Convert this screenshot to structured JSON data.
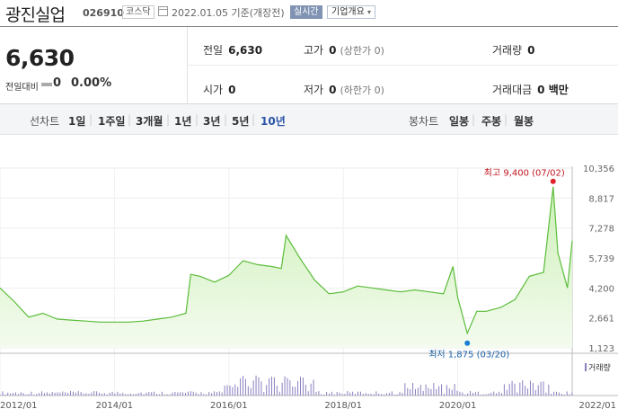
{
  "header": {
    "name": "광진실업",
    "code": "026910",
    "market": "코스닥",
    "date": "2022.01.05 기준(개장전)",
    "realtime": "실시간",
    "company_info": "기업개요"
  },
  "quote": {
    "price": "6,630",
    "change_label": "전일대비",
    "change": "0",
    "change_pct": "0.00%",
    "prev_close_label": "전일",
    "prev_close": "6,630",
    "high_label": "고가",
    "high": "0",
    "upper_limit": "(상한가 0)",
    "volume_label": "거래량",
    "volume": "0",
    "open_label": "시가",
    "open": "0",
    "low_label": "저가",
    "low": "0",
    "lower_limit": "(하한가 0)",
    "value_label": "거래대금",
    "value": "0 백만"
  },
  "periods": {
    "line_label": "선차트",
    "line_items": [
      "1일",
      "1주일",
      "3개월",
      "1년",
      "3년",
      "5년",
      "10년"
    ],
    "selected": "10년",
    "candle_label": "봉차트",
    "candle_items": [
      "일봉",
      "주봉",
      "월봉"
    ]
  },
  "colors": {
    "line": "#5bbd3a",
    "fill_top": "#cdf0b8",
    "fill_bottom": "#f4fbef",
    "volume": "#8a7fc0",
    "high_marker": "#e0202a",
    "low_marker": "#1a7fd4"
  },
  "chart_data": {
    "type": "area",
    "x": [
      "2012-01",
      "2012-04",
      "2012-07",
      "2012-10",
      "2013-01",
      "2013-04",
      "2013-07",
      "2013-10",
      "2014-01",
      "2014-04",
      "2014-07",
      "2014-10",
      "2015-01",
      "2015-04",
      "2015-05",
      "2015-07",
      "2015-10",
      "2016-01",
      "2016-04",
      "2016-07",
      "2016-10",
      "2016-12",
      "2017-01",
      "2017-04",
      "2017-07",
      "2017-10",
      "2018-01",
      "2018-04",
      "2018-07",
      "2018-10",
      "2019-01",
      "2019-04",
      "2019-07",
      "2019-10",
      "2019-12",
      "2020-01",
      "2020-03",
      "2020-05",
      "2020-07",
      "2020-10",
      "2021-01",
      "2021-04",
      "2021-07",
      "2021-09",
      "2021-10",
      "2021-12",
      "2022-01"
    ],
    "series": [
      {
        "values": [
          4200,
          3500,
          2700,
          2900,
          2600,
          2550,
          2500,
          2450,
          2450,
          2450,
          2500,
          2600,
          2700,
          2900,
          4900,
          4800,
          4500,
          4850,
          5600,
          5400,
          5300,
          5200,
          6900,
          5700,
          4600,
          3900,
          4000,
          4300,
          4200,
          4100,
          4000,
          4100,
          4000,
          3900,
          5300,
          3700,
          1875,
          3000,
          3000,
          3200,
          3600,
          4800,
          5000,
          9400,
          6000,
          4200,
          6630
        ]
      }
    ],
    "volume": {
      "label": "거래량"
    },
    "y_ticks": [
      "10,356",
      "8,817",
      "7,278",
      "5,739",
      "4,200",
      "2,661",
      "1,123"
    ],
    "ylim": [
      1123,
      10356
    ],
    "x_ticks": [
      "2012/01",
      "2014/01",
      "2016/01",
      "2018/01",
      "2020/01",
      "2022/01"
    ],
    "annotations": {
      "high": {
        "label": "최고",
        "value": "9,400",
        "date": "(07/02)",
        "x": "2021-09",
        "y": 9400
      },
      "low": {
        "label": "최저",
        "value": "1,875",
        "date": "(03/20)",
        "x": "2020-03",
        "y": 1875
      }
    },
    "grid": true
  }
}
